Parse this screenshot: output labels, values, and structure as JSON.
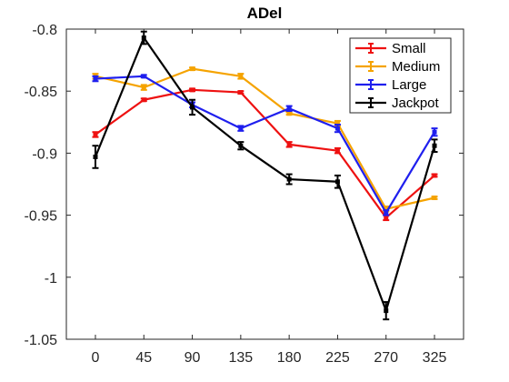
{
  "chart_data": {
    "type": "line",
    "title": "ADel",
    "xlabel": "",
    "ylabel": "",
    "categories": [
      "0",
      "45",
      "90",
      "135",
      "180",
      "225",
      "270",
      "325"
    ],
    "ylim": [
      -1.05,
      -0.8
    ],
    "yticks": [
      -0.8,
      -0.85,
      -0.9,
      -0.95,
      -1,
      -1.05
    ],
    "ytick_labels": [
      "-0.8",
      "-0.85",
      "-0.9",
      "-0.95",
      "-1",
      "-1.05"
    ],
    "legend_position": "top-right",
    "grid": false,
    "series": [
      {
        "name": "Small",
        "color": "#ee1111",
        "values": [
          -0.885,
          -0.857,
          -0.849,
          -0.851,
          -0.893,
          -0.898,
          -0.952,
          -0.918
        ],
        "errors": [
          0.002,
          0.001,
          0.001,
          0.001,
          0.002,
          0.002,
          0.002,
          0.001
        ]
      },
      {
        "name": "Medium",
        "color": "#f5a300",
        "values": [
          -0.838,
          -0.847,
          -0.832,
          -0.838,
          -0.868,
          -0.876,
          -0.945,
          -0.936
        ],
        "errors": [
          0.002,
          0.002,
          0.001,
          0.002,
          0.001,
          0.002,
          0.002,
          0.001
        ]
      },
      {
        "name": "Large",
        "color": "#1f1fee",
        "values": [
          -0.84,
          -0.838,
          -0.861,
          -0.88,
          -0.864,
          -0.88,
          -0.948,
          -0.883
        ],
        "errors": [
          0.002,
          0.001,
          0.002,
          0.002,
          0.002,
          0.003,
          0.002,
          0.003
        ]
      },
      {
        "name": "Jackpot",
        "color": "#000000",
        "values": [
          -0.903,
          -0.807,
          -0.863,
          -0.894,
          -0.921,
          -0.923,
          -1.027,
          -0.894
        ],
        "errors": [
          0.009,
          0.005,
          0.006,
          0.003,
          0.004,
          0.005,
          0.007,
          0.005
        ]
      }
    ]
  }
}
